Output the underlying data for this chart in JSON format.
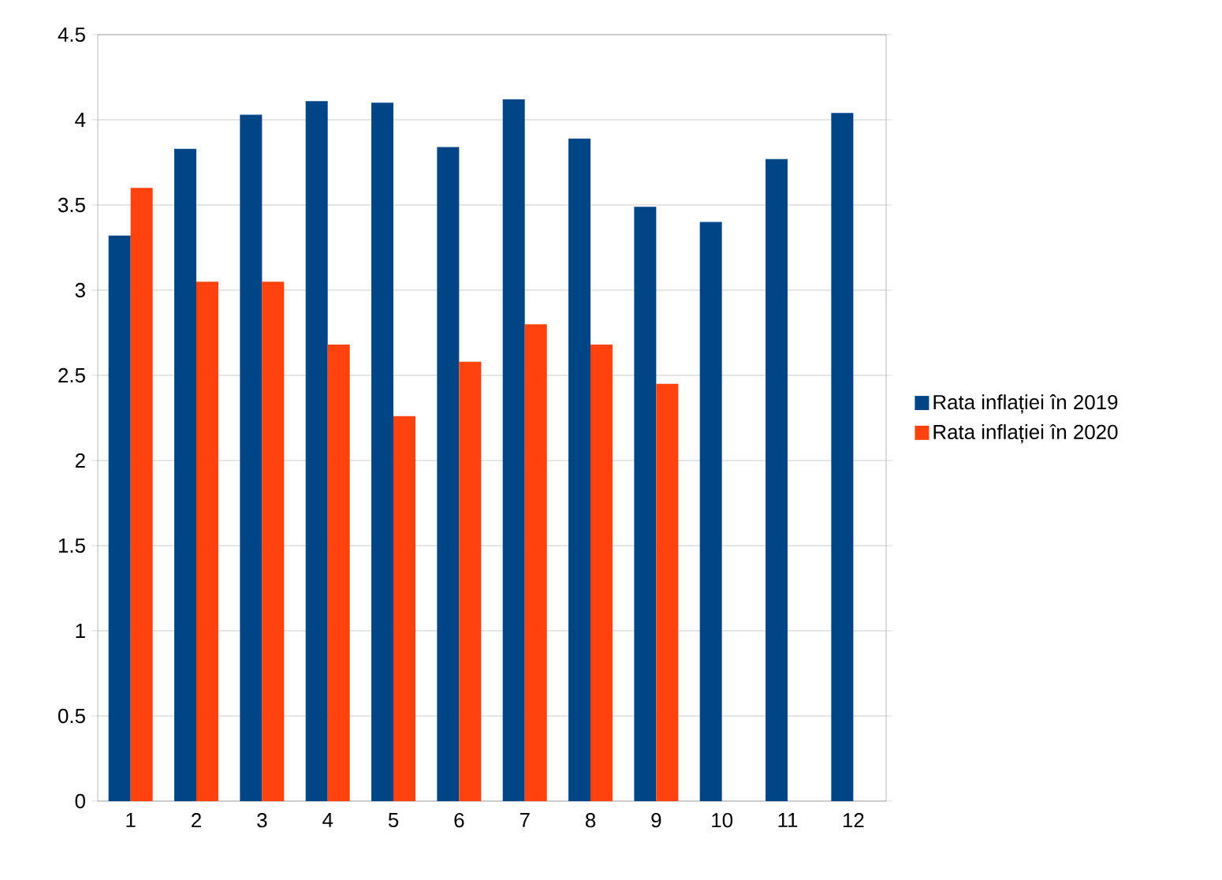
{
  "chart_data": {
    "type": "bar",
    "categories": [
      "1",
      "2",
      "3",
      "4",
      "5",
      "6",
      "7",
      "8",
      "9",
      "10",
      "11",
      "12"
    ],
    "series": [
      {
        "name": "Rata inflației în 2019",
        "color": "#004586",
        "values": [
          3.32,
          3.83,
          4.03,
          4.11,
          4.1,
          3.84,
          4.12,
          3.89,
          3.49,
          3.4,
          3.77,
          4.04
        ]
      },
      {
        "name": "Rata inflației în 2020",
        "color": "#ff420e",
        "values": [
          3.6,
          3.05,
          3.05,
          2.68,
          2.26,
          2.58,
          2.8,
          2.68,
          2.45,
          null,
          null,
          null
        ]
      }
    ],
    "ylim": [
      0,
      4.5
    ],
    "yticks": [
      0,
      0.5,
      1,
      1.5,
      2,
      2.5,
      3,
      3.5,
      4,
      4.5
    ],
    "grid": "y",
    "legend": "right"
  }
}
